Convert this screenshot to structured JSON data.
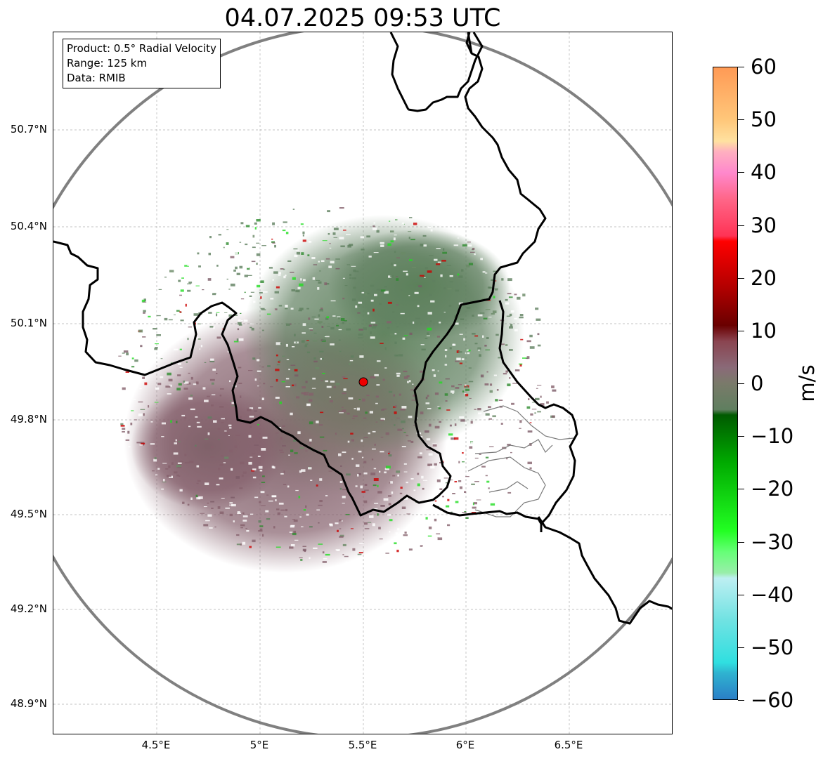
{
  "title": "04.07.2025 09:53 UTC",
  "info_box": {
    "product": "Product: 0.5° Radial Velocity",
    "range": "Range: 125 km",
    "source": "Data: RMIB"
  },
  "map": {
    "latitude_labels": [
      "50.7°N",
      "50.4°N",
      "50.1°N",
      "49.8°N",
      "49.5°N",
      "49.2°N",
      "48.9°N"
    ],
    "longitude_labels": [
      "4.5°E",
      "5°E",
      "5.5°E",
      "6°E",
      "6.5°E"
    ],
    "radar_site_marker": "radar-site",
    "range_ring_color": "#808080",
    "border_color": "#000000"
  },
  "colorbar": {
    "unit": "m/s",
    "min": -60,
    "max": 60,
    "tick_labels": [
      "60",
      "50",
      "40",
      "30",
      "20",
      "10",
      "0",
      "−10",
      "−20",
      "−30",
      "−40",
      "−50",
      "−60"
    ],
    "stops": [
      {
        "value": 60,
        "color": "#ff9a55"
      },
      {
        "value": 50,
        "color": "#ffc77a"
      },
      {
        "value": 46,
        "color": "#ffe1a0"
      },
      {
        "value": 44,
        "color": "#ffb0c0"
      },
      {
        "value": 40,
        "color": "#ff88cc"
      },
      {
        "value": 35,
        "color": "#ff6688"
      },
      {
        "value": 28,
        "color": "#ff3355"
      },
      {
        "value": 27,
        "color": "#ff0000"
      },
      {
        "value": 18,
        "color": "#b00000"
      },
      {
        "value": 11,
        "color": "#6a0000"
      },
      {
        "value": 8,
        "color": "#8a4450"
      },
      {
        "value": 3,
        "color": "#8a6a78"
      },
      {
        "value": 0,
        "color": "#7a7a6a"
      },
      {
        "value": -5,
        "color": "#5f7f5f"
      },
      {
        "value": -6,
        "color": "#005a00"
      },
      {
        "value": -15,
        "color": "#00aa00"
      },
      {
        "value": -28,
        "color": "#22ff22"
      },
      {
        "value": -32,
        "color": "#66ff77"
      },
      {
        "value": -36,
        "color": "#99eeaa"
      },
      {
        "value": -37,
        "color": "#bdeff2"
      },
      {
        "value": -45,
        "color": "#70e2e2"
      },
      {
        "value": -53,
        "color": "#30dfe0"
      },
      {
        "value": -55,
        "color": "#2fb3d0"
      },
      {
        "value": -60,
        "color": "#2a7fc7"
      }
    ]
  },
  "colors": {
    "velocity_near_zero_pos": "#856570",
    "velocity_near_zero_neg": "#5f7f5f",
    "radar_marker": "#ee0000"
  }
}
